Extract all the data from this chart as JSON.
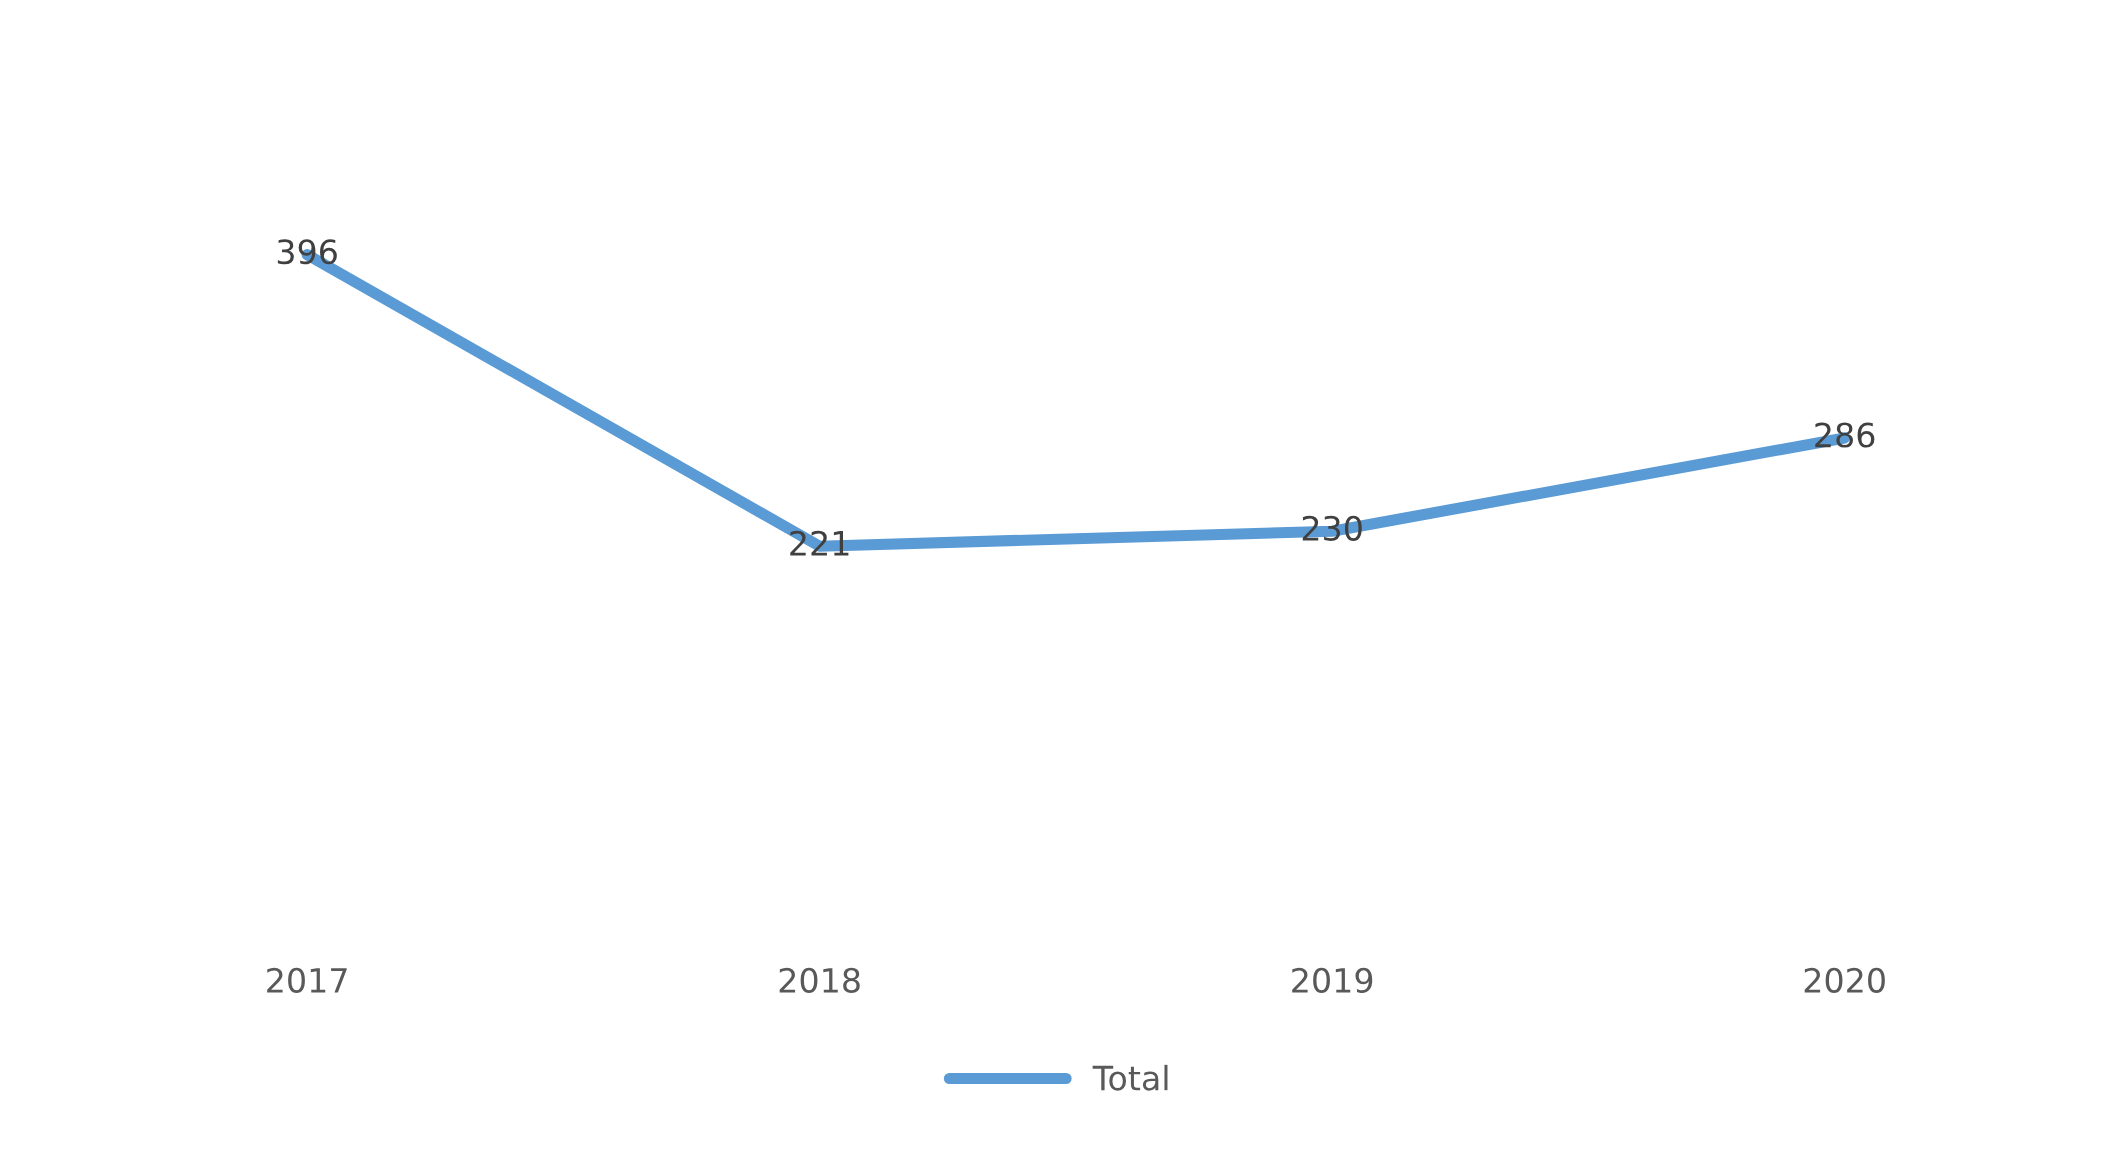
{
  "chart_data": {
    "type": "line",
    "categories": [
      "2017",
      "2018",
      "2019",
      "2020"
    ],
    "series": [
      {
        "name": "Total",
        "color": "#5b9bd5",
        "values": [
          396,
          221,
          230,
          286
        ]
      }
    ],
    "data_labels": true,
    "legend": "bottom",
    "grid": false,
    "line_style": "solid"
  }
}
